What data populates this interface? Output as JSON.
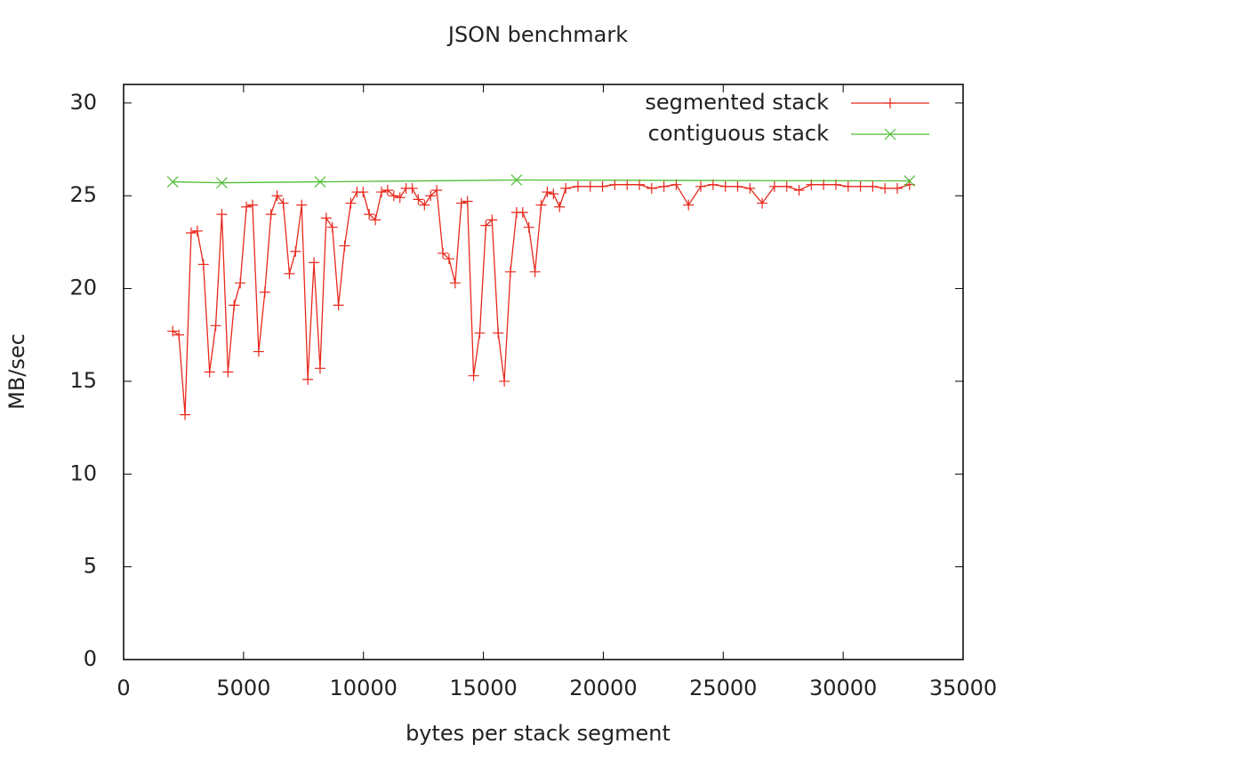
{
  "chart_data": {
    "type": "line",
    "title": "JSON benchmark",
    "x_label": "bytes per stack segment",
    "y_label": "MB/sec",
    "xlim": [
      0,
      35000
    ],
    "xticks": [
      0,
      5000,
      10000,
      15000,
      20000,
      25000,
      30000,
      35000
    ],
    "ylim": [
      0,
      31
    ],
    "yticks": [
      0,
      5,
      10,
      15,
      20,
      25,
      30
    ],
    "legend": "top-right",
    "series": [
      {
        "name": "segmented stack",
        "color": "#e8281c",
        "marker": "plus",
        "x": [
          2048,
          2304,
          2560,
          2816,
          3072,
          3328,
          3584,
          3840,
          4096,
          4352,
          4608,
          4864,
          5120,
          5376,
          5632,
          5888,
          6144,
          6400,
          6656,
          6912,
          7168,
          7424,
          7680,
          7936,
          8192,
          8448,
          8704,
          8960,
          9216,
          9472,
          9728,
          9984,
          10240,
          10496,
          10752,
          11008,
          11264,
          11520,
          11776,
          12032,
          12288,
          12544,
          12800,
          13056,
          13312,
          13568,
          13824,
          14080,
          14336,
          14592,
          14848,
          15104,
          15360,
          15616,
          15872,
          16128,
          16384,
          16640,
          16896,
          17152,
          17408,
          17664,
          17920,
          18176,
          18432,
          18944,
          19456,
          19968,
          20480,
          20992,
          21504,
          22016,
          22528,
          23040,
          23552,
          24064,
          24576,
          25088,
          25600,
          26112,
          26624,
          27136,
          27648,
          28160,
          28672,
          29184,
          29696,
          30208,
          30720,
          31232,
          31744,
          32256,
          32768
        ],
        "values": [
          17.7,
          17.5,
          13.2,
          23.0,
          23.1,
          21.3,
          15.5,
          18.0,
          24.0,
          15.5,
          19.1,
          20.3,
          24.4,
          24.5,
          16.6,
          19.8,
          24.0,
          25.0,
          24.6,
          20.8,
          22.0,
          24.5,
          15.1,
          21.4,
          15.7,
          23.8,
          23.3,
          19.1,
          22.3,
          24.6,
          25.2,
          25.2,
          24.0,
          23.7,
          25.2,
          25.3,
          25.0,
          24.9,
          25.4,
          25.4,
          24.8,
          24.5,
          25.0,
          25.3,
          21.9,
          21.6,
          20.3,
          24.6,
          24.7,
          15.3,
          17.6,
          23.4,
          23.7,
          17.6,
          15.0,
          20.9,
          24.1,
          24.1,
          23.3,
          20.9,
          24.5,
          25.2,
          25.1,
          24.4,
          25.4,
          25.5,
          25.5,
          25.5,
          25.6,
          25.6,
          25.6,
          25.4,
          25.5,
          25.6,
          24.5,
          25.5,
          25.6,
          25.5,
          25.5,
          25.4,
          24.6,
          25.5,
          25.5,
          25.3,
          25.6,
          25.6,
          25.6,
          25.5,
          25.5,
          25.5,
          25.4,
          25.4,
          25.6
        ]
      },
      {
        "name": "contiguous stack",
        "color": "#4dbd33",
        "marker": "cross",
        "x": [
          2048,
          4096,
          8192,
          16384,
          32768
        ],
        "values": [
          25.75,
          25.7,
          25.75,
          25.85,
          25.8
        ]
      }
    ]
  }
}
